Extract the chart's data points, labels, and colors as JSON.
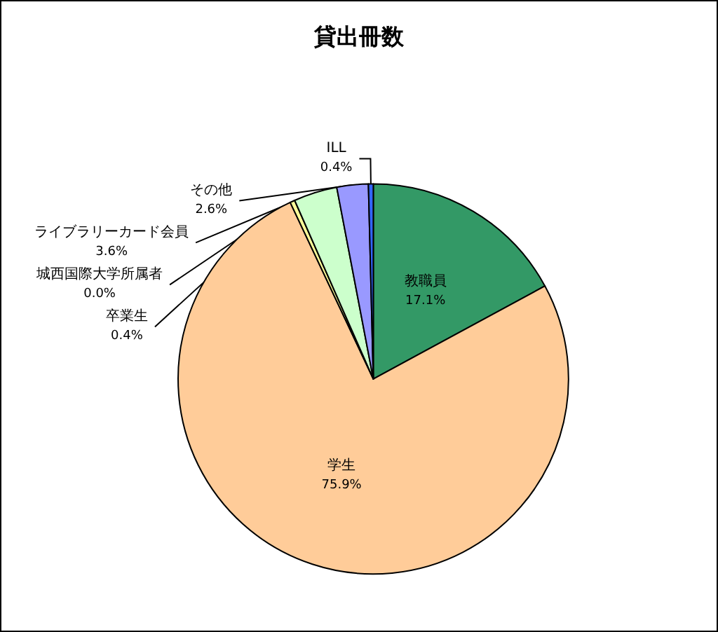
{
  "chart_data": {
    "type": "pie",
    "title": "貸出冊数",
    "categories": [
      "教職員",
      "学生",
      "卒業生",
      "城西国際大学所属者",
      "ライブラリーカード会員",
      "その他",
      "ILL"
    ],
    "values": [
      17.1,
      75.9,
      0.4,
      0.0,
      3.6,
      2.6,
      0.4
    ],
    "value_labels": [
      "17.1%",
      "75.9%",
      "0.4%",
      "0.0%",
      "3.6%",
      "2.6%",
      "0.4%"
    ],
    "colors": [
      "#339966",
      "#ffcc99",
      "#ffff99",
      "#ff99cc",
      "#ccffcc",
      "#9999ff",
      "#3366ff"
    ],
    "legend": false
  }
}
